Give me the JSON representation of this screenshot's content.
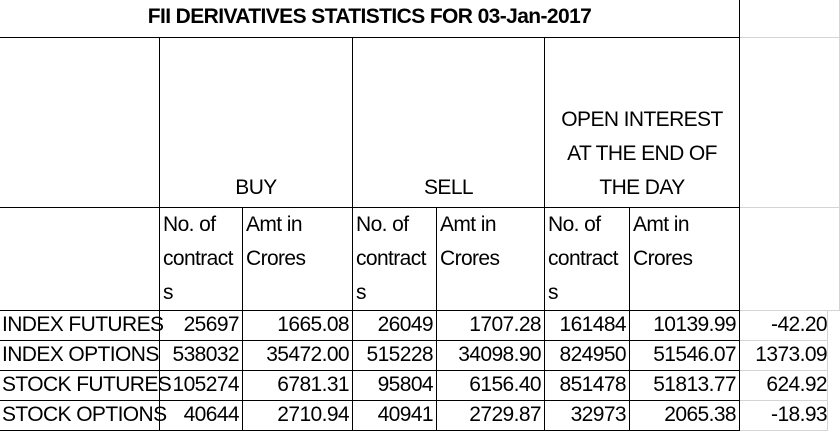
{
  "title": "FII DERIVATIVES STATISTICS FOR 03-Jan-2017",
  "groups": [
    "BUY",
    "SELL",
    "OPEN INTEREST AT THE END OF THE DAY"
  ],
  "subheaders": [
    "No. of contracts",
    "Amt in Crores",
    "No. of contracts",
    "Amt in Crores",
    "No. of contracts",
    "Amt in Crores"
  ],
  "rows": [
    {
      "label": "INDEX FUTURES",
      "values": [
        "25697",
        "1665.08",
        "26049",
        "1707.28",
        "161484",
        "10139.99",
        "-42.20"
      ]
    },
    {
      "label": "INDEX OPTIONS",
      "values": [
        "538032",
        "35472.00",
        "515228",
        "34098.90",
        "824950",
        "51546.07",
        "1373.09"
      ]
    },
    {
      "label": "STOCK FUTURES",
      "values": [
        "105274",
        "6781.31",
        "95804",
        "6156.40",
        "851478",
        "51813.77",
        "624.92"
      ]
    },
    {
      "label": "STOCK OPTIONS",
      "values": [
        "40644",
        "2710.94",
        "40941",
        "2729.87",
        "32973",
        "2065.38",
        "-18.93"
      ]
    }
  ]
}
